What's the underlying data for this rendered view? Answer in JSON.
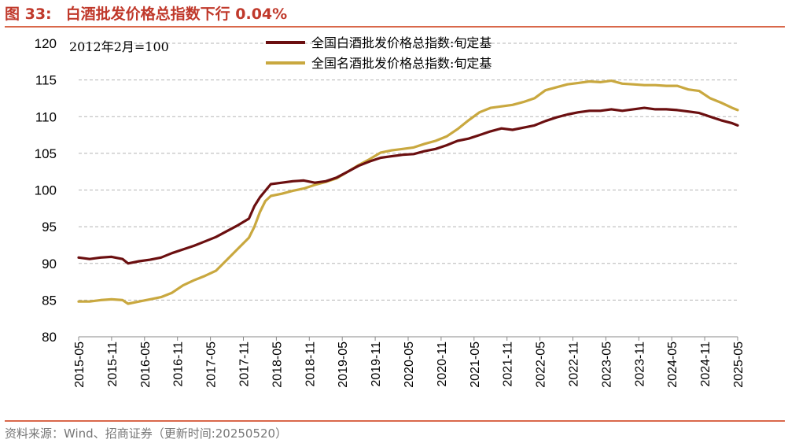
{
  "header": {
    "figure_no": "图 33:",
    "title": "白酒批发价格总指数下行 0.04%"
  },
  "source": "资料来源：Wind、招商证券（更新时间:20250520）",
  "chart_data": {
    "type": "line",
    "base_note": "2012年2月=100",
    "ylim": [
      80,
      120
    ],
    "yticks": [
      80,
      85,
      90,
      95,
      100,
      105,
      110,
      115,
      120
    ],
    "x_range": [
      "2015-05",
      "2025-05"
    ],
    "xticks": [
      "2015-05",
      "2015-11",
      "2016-05",
      "2016-11",
      "2017-05",
      "2017-11",
      "2018-05",
      "2018-11",
      "2019-05",
      "2019-11",
      "2020-05",
      "2020-11",
      "2021-05",
      "2021-11",
      "2022-05",
      "2022-11",
      "2023-05",
      "2023-11",
      "2024-05",
      "2024-11",
      "2025-05"
    ],
    "grid": "horizontal dashed",
    "legend_position": "top-center",
    "series": [
      {
        "name": "全国白酒批发价格总指数:旬定基",
        "color": "#6b0f10",
        "points": [
          [
            "2015-05",
            90.8
          ],
          [
            "2015-07",
            90.6
          ],
          [
            "2015-09",
            90.8
          ],
          [
            "2015-11",
            90.9
          ],
          [
            "2016-01",
            90.6
          ],
          [
            "2016-02",
            90.0
          ],
          [
            "2016-04",
            90.3
          ],
          [
            "2016-06",
            90.5
          ],
          [
            "2016-08",
            90.8
          ],
          [
            "2016-10",
            91.4
          ],
          [
            "2016-12",
            91.9
          ],
          [
            "2017-02",
            92.4
          ],
          [
            "2017-04",
            93.0
          ],
          [
            "2017-06",
            93.6
          ],
          [
            "2017-08",
            94.4
          ],
          [
            "2017-10",
            95.2
          ],
          [
            "2017-12",
            96.1
          ],
          [
            "2018-01",
            97.8
          ],
          [
            "2018-02",
            99.0
          ],
          [
            "2018-03",
            99.9
          ],
          [
            "2018-04",
            100.8
          ],
          [
            "2018-06",
            101.0
          ],
          [
            "2018-08",
            101.2
          ],
          [
            "2018-10",
            101.3
          ],
          [
            "2018-12",
            101.0
          ],
          [
            "2019-02",
            101.2
          ],
          [
            "2019-04",
            101.7
          ],
          [
            "2019-06",
            102.5
          ],
          [
            "2019-08",
            103.3
          ],
          [
            "2019-10",
            103.9
          ],
          [
            "2019-12",
            104.4
          ],
          [
            "2020-02",
            104.6
          ],
          [
            "2020-04",
            104.8
          ],
          [
            "2020-06",
            104.9
          ],
          [
            "2020-08",
            105.3
          ],
          [
            "2020-10",
            105.6
          ],
          [
            "2020-12",
            106.1
          ],
          [
            "2021-02",
            106.7
          ],
          [
            "2021-04",
            107.0
          ],
          [
            "2021-06",
            107.5
          ],
          [
            "2021-08",
            108.0
          ],
          [
            "2021-10",
            108.4
          ],
          [
            "2021-12",
            108.2
          ],
          [
            "2022-02",
            108.5
          ],
          [
            "2022-04",
            108.8
          ],
          [
            "2022-06",
            109.4
          ],
          [
            "2022-08",
            109.9
          ],
          [
            "2022-10",
            110.3
          ],
          [
            "2022-12",
            110.6
          ],
          [
            "2023-02",
            110.8
          ],
          [
            "2023-04",
            110.8
          ],
          [
            "2023-06",
            111.0
          ],
          [
            "2023-08",
            110.8
          ],
          [
            "2023-10",
            111.0
          ],
          [
            "2023-12",
            111.2
          ],
          [
            "2024-02",
            111.0
          ],
          [
            "2024-04",
            111.0
          ],
          [
            "2024-06",
            110.9
          ],
          [
            "2024-08",
            110.7
          ],
          [
            "2024-10",
            110.5
          ],
          [
            "2024-12",
            110.0
          ],
          [
            "2025-02",
            109.5
          ],
          [
            "2025-04",
            109.1
          ],
          [
            "2025-05",
            108.8
          ]
        ]
      },
      {
        "name": "全国名酒批发价格总指数:旬定基",
        "color": "#c9a83f",
        "points": [
          [
            "2015-05",
            84.8
          ],
          [
            "2015-07",
            84.8
          ],
          [
            "2015-09",
            85.0
          ],
          [
            "2015-11",
            85.1
          ],
          [
            "2016-01",
            85.0
          ],
          [
            "2016-02",
            84.5
          ],
          [
            "2016-04",
            84.8
          ],
          [
            "2016-06",
            85.1
          ],
          [
            "2016-08",
            85.4
          ],
          [
            "2016-10",
            86.0
          ],
          [
            "2016-12",
            87.0
          ],
          [
            "2017-02",
            87.7
          ],
          [
            "2017-04",
            88.3
          ],
          [
            "2017-06",
            89.0
          ],
          [
            "2017-08",
            90.5
          ],
          [
            "2017-10",
            92.0
          ],
          [
            "2017-12",
            93.5
          ],
          [
            "2018-01",
            95.0
          ],
          [
            "2018-02",
            97.0
          ],
          [
            "2018-03",
            98.5
          ],
          [
            "2018-04",
            99.2
          ],
          [
            "2018-06",
            99.5
          ],
          [
            "2018-08",
            99.9
          ],
          [
            "2018-10",
            100.2
          ],
          [
            "2018-12",
            100.7
          ],
          [
            "2019-02",
            101.1
          ],
          [
            "2019-04",
            101.6
          ],
          [
            "2019-06",
            102.5
          ],
          [
            "2019-08",
            103.4
          ],
          [
            "2019-10",
            104.2
          ],
          [
            "2019-12",
            105.1
          ],
          [
            "2020-02",
            105.4
          ],
          [
            "2020-04",
            105.6
          ],
          [
            "2020-06",
            105.8
          ],
          [
            "2020-08",
            106.3
          ],
          [
            "2020-10",
            106.7
          ],
          [
            "2020-12",
            107.3
          ],
          [
            "2021-02",
            108.3
          ],
          [
            "2021-04",
            109.5
          ],
          [
            "2021-06",
            110.6
          ],
          [
            "2021-08",
            111.2
          ],
          [
            "2021-10",
            111.4
          ],
          [
            "2021-12",
            111.6
          ],
          [
            "2022-02",
            112.0
          ],
          [
            "2022-04",
            112.5
          ],
          [
            "2022-06",
            113.6
          ],
          [
            "2022-08",
            114.0
          ],
          [
            "2022-10",
            114.4
          ],
          [
            "2022-12",
            114.6
          ],
          [
            "2023-02",
            114.8
          ],
          [
            "2023-04",
            114.7
          ],
          [
            "2023-06",
            114.9
          ],
          [
            "2023-08",
            114.5
          ],
          [
            "2023-10",
            114.4
          ],
          [
            "2023-12",
            114.3
          ],
          [
            "2024-02",
            114.3
          ],
          [
            "2024-04",
            114.2
          ],
          [
            "2024-06",
            114.2
          ],
          [
            "2024-08",
            113.7
          ],
          [
            "2024-10",
            113.5
          ],
          [
            "2024-12",
            112.5
          ],
          [
            "2025-02",
            111.9
          ],
          [
            "2025-04",
            111.2
          ],
          [
            "2025-05",
            110.9
          ]
        ]
      }
    ]
  }
}
